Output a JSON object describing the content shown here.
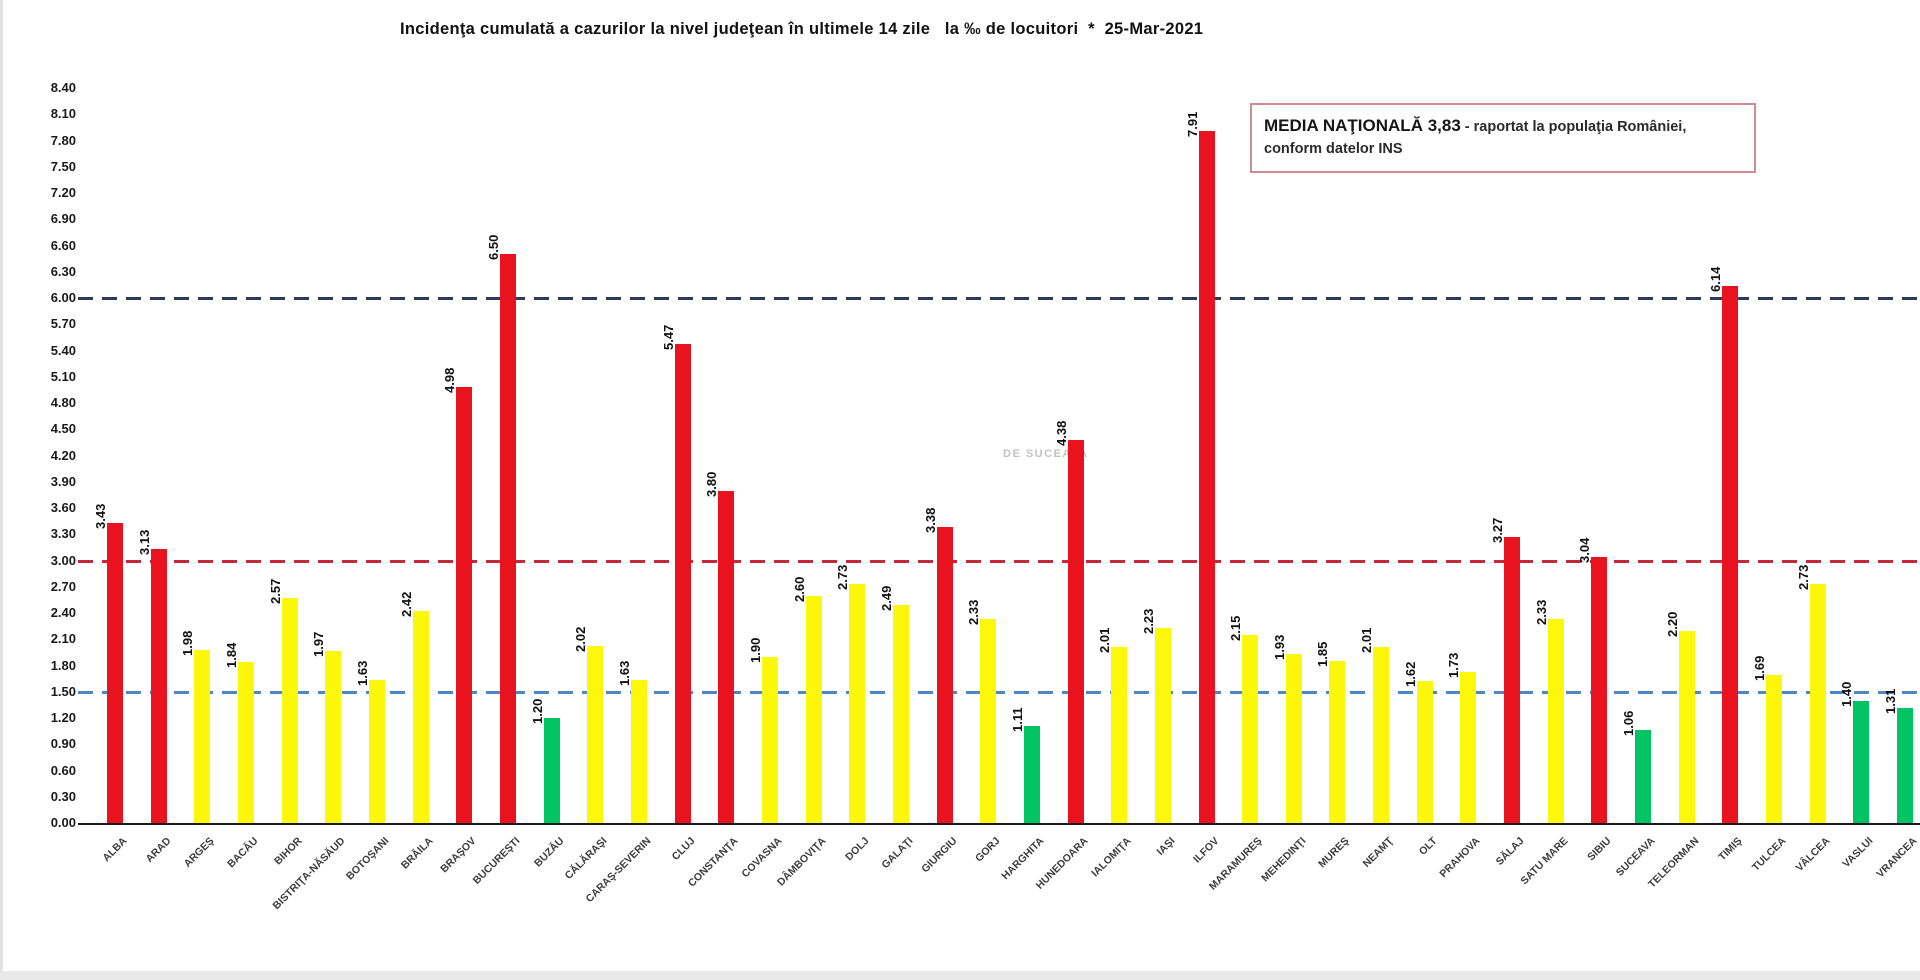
{
  "title": "Incidenţa cumulată a cazurilor la nivel judeţean în ultimele 14 zile   la ‰ de locuitori  *  25-Mar-2021",
  "legend": {
    "bold": "MEDIA NAŢIONALĂ 3,83",
    "rest": " - raportat la populaţia României,",
    "line2": "conform datelor INS"
  },
  "watermark": "DE SUCEAVA",
  "chart_data": {
    "type": "bar",
    "title": "Incidenţa cumulată a cazurilor la nivel judeţean în ultimele 14 zile la ‰ de locuitori * 25-Mar-2021",
    "xlabel": "",
    "ylabel": "",
    "ylim": [
      0,
      8.4
    ],
    "ytick_step": 0.3,
    "grid": false,
    "legend_position": "top-right",
    "yticks": [
      "0.00",
      "0.30",
      "0.60",
      "0.90",
      "1.20",
      "1.50",
      "1.80",
      "2.10",
      "2.40",
      "2.70",
      "3.00",
      "3.30",
      "3.60",
      "3.90",
      "4.20",
      "4.50",
      "4.80",
      "5.10",
      "5.40",
      "5.70",
      "6.00",
      "6.30",
      "6.60",
      "6.90",
      "7.20",
      "7.50",
      "7.80",
      "8.10",
      "8.40"
    ],
    "categories": [
      "ALBA",
      "ARAD",
      "ARGEŞ",
      "BACĂU",
      "BIHOR",
      "BISTRIŢA-NĂSĂUD",
      "BOTOŞANI",
      "BRĂILA",
      "BRAŞOV",
      "BUCUREŞTI",
      "BUZĂU",
      "CĂLĂRAŞI",
      "CARAŞ-SEVERIN",
      "CLUJ",
      "CONSTANŢA",
      "COVASNA",
      "DÂMBOVIŢA",
      "DOLJ",
      "GALAŢI",
      "GIURGIU",
      "GORJ",
      "HARGHITA",
      "HUNEDOARA",
      "IALOMIŢA",
      "IAŞI",
      "ILFOV",
      "MARAMUREŞ",
      "MEHEDINŢI",
      "MUREŞ",
      "NEAMŢ",
      "OLT",
      "PRAHOVA",
      "SĂLAJ",
      "SATU MARE",
      "SIBIU",
      "SUCEAVA",
      "TELEORMAN",
      "TIMIŞ",
      "TULCEA",
      "VÂLCEA",
      "VASLUI",
      "VRANCEA"
    ],
    "values": [
      3.43,
      3.13,
      1.98,
      1.84,
      2.57,
      1.97,
      1.63,
      2.42,
      4.98,
      6.5,
      1.2,
      2.02,
      1.63,
      5.47,
      3.8,
      1.9,
      2.6,
      2.73,
      2.49,
      3.38,
      2.33,
      1.11,
      4.38,
      2.01,
      2.23,
      7.91,
      2.15,
      1.93,
      1.85,
      2.01,
      1.62,
      1.73,
      3.27,
      2.33,
      3.04,
      1.06,
      2.2,
      6.14,
      1.69,
      2.73,
      1.4,
      1.31
    ],
    "bar_colors": [
      "red",
      "red",
      "yellow",
      "yellow",
      "yellow",
      "yellow",
      "yellow",
      "yellow",
      "red",
      "red",
      "green",
      "yellow",
      "yellow",
      "red",
      "red",
      "yellow",
      "yellow",
      "yellow",
      "yellow",
      "red",
      "yellow",
      "green",
      "red",
      "yellow",
      "yellow",
      "red",
      "yellow",
      "yellow",
      "yellow",
      "yellow",
      "yellow",
      "yellow",
      "red",
      "yellow",
      "red",
      "green",
      "yellow",
      "red",
      "yellow",
      "yellow",
      "green",
      "green"
    ],
    "palette": {
      "red": "#e8131f",
      "yellow": "#fdf80b",
      "green": "#00c463"
    },
    "thresholds": [
      {
        "value": 6.0,
        "color": "#2d3a5e"
      },
      {
        "value": 3.0,
        "color": "#c3293a"
      },
      {
        "value": 1.5,
        "color": "#4f86c6"
      }
    ],
    "national_average": "3,83"
  }
}
